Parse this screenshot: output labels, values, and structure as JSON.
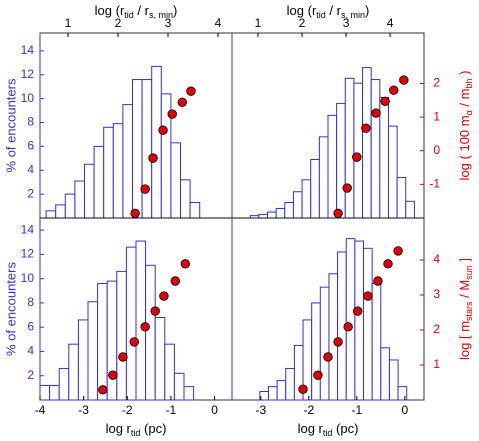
{
  "chart_data": [
    {
      "type": "histogram",
      "bins": [
        -3.86,
        -3.64,
        -3.42,
        -3.2,
        -2.98,
        -2.76,
        -2.54,
        -2.32,
        -2.1,
        -1.88,
        -1.66,
        -1.44,
        -1.22,
        -1.0,
        -0.78,
        -0.56,
        -0.34
      ],
      "values": [
        0.6,
        1.1,
        2.0,
        3.1,
        4.5,
        6.0,
        7.6,
        7.9,
        9.5,
        11.6,
        11.6,
        12.7,
        10.4,
        6.3,
        3.2,
        1.3
      ],
      "color": "#3333cc",
      "xlim": [
        -4,
        0.4
      ],
      "ylim": [
        0,
        15.5
      ],
      "yticks": [
        2,
        4,
        6,
        8,
        10,
        12,
        14
      ],
      "ylabel": "% of encounters",
      "top_xlabel": [
        "log (r",
        "tid",
        " / r",
        "s, min",
        ")"
      ],
      "top_xlim": [
        0.44,
        4.28
      ],
      "top_xticks": [
        1,
        2,
        3,
        4
      ],
      "scatter": {
        "x": [
          -1.82,
          -1.59,
          -1.41,
          -1.18,
          -0.97,
          -0.74,
          -0.54
        ],
        "y": [
          -1.86,
          -1.14,
          -0.22,
          0.61,
          1.09,
          1.44,
          1.77
        ],
        "color": "#dd0000",
        "axis": "y2"
      },
      "y2lim": [
        -2,
        3.5
      ]
    },
    {
      "type": "histogram",
      "bins": [
        -3.22,
        -3.04,
        -2.86,
        -2.68,
        -2.5,
        -2.32,
        -2.14,
        -1.96,
        -1.78,
        -1.6,
        -1.42,
        -1.24,
        -1.06,
        -0.88,
        -0.7,
        -0.52,
        -0.34,
        -0.16,
        0.02,
        0.2
      ],
      "values": [
        0.2,
        0.3,
        0.5,
        0.8,
        1.3,
        2.2,
        3.2,
        4.9,
        6.8,
        8.6,
        9.6,
        11.7,
        11.3,
        12.6,
        11.6,
        10.1,
        7.7,
        3.4,
        1.4
      ],
      "color": "#3333cc",
      "xlim": [
        -3.6,
        0.4
      ],
      "ylim": [
        0,
        15.5
      ],
      "top_xlabel": [
        "log (r",
        "tid",
        " / r",
        "s, min",
        ")"
      ],
      "top_xlim": [
        0.41,
        4.77
      ],
      "top_xticks": [
        1,
        2,
        3,
        4
      ],
      "scatter": {
        "x": [
          -1.39,
          -1.2,
          -1.0,
          -0.81,
          -0.6,
          -0.41,
          -0.23,
          -0.02
        ],
        "y": [
          -1.86,
          -1.11,
          -0.19,
          0.67,
          1.12,
          1.47,
          1.8,
          2.1
        ],
        "color": "#dd0000",
        "axis": "y2"
      },
      "y2lim": [
        -2,
        3.5
      ],
      "y2ticks": [
        -1,
        0,
        1,
        2
      ],
      "y2label": [
        "log ( 100 m",
        "α",
        " / m",
        "bh",
        " )"
      ]
    },
    {
      "type": "histogram",
      "bins": [
        -4.0,
        -3.78,
        -3.56,
        -3.34,
        -3.12,
        -2.9,
        -2.68,
        -2.46,
        -2.24,
        -2.02,
        -1.8,
        -1.58,
        -1.36,
        -1.14,
        -0.92,
        -0.7,
        -0.48
      ],
      "values": [
        1.2,
        1.2,
        2.6,
        4.6,
        6.6,
        8.1,
        9.6,
        9.8,
        10.6,
        12.6,
        13.1,
        11.1,
        6.8,
        4.6,
        2.2,
        1.1
      ],
      "color": "#3333cc",
      "xlim": [
        -4,
        0.4
      ],
      "xticks": [
        -4,
        -3,
        -2,
        -1,
        0
      ],
      "ylim": [
        0,
        15
      ],
      "yticks": [
        2,
        4,
        6,
        8,
        10,
        12,
        14
      ],
      "ylabel": "% of encounters",
      "xlabel": [
        "log r",
        "tid",
        " (pc)"
      ],
      "scatter": {
        "x": [
          -2.56,
          -2.33,
          -2.1,
          -1.84,
          -1.59,
          -1.36,
          -1.16,
          -0.9,
          -0.67
        ],
        "y": [
          0.29,
          0.71,
          1.23,
          1.66,
          2.09,
          2.54,
          2.97,
          3.4,
          3.89
        ],
        "color": "#dd0000",
        "axis": "y2"
      },
      "y2lim": [
        0,
        5.2
      ]
    },
    {
      "type": "histogram",
      "bins": [
        -3.02,
        -2.84,
        -2.66,
        -2.48,
        -2.3,
        -2.12,
        -1.94,
        -1.76,
        -1.58,
        -1.4,
        -1.22,
        -1.04,
        -0.86,
        -0.68,
        -0.5,
        -0.32,
        -0.14,
        0.04
      ],
      "values": [
        0.7,
        1.1,
        1.6,
        2.6,
        4.5,
        6.6,
        8.0,
        9.3,
        10.4,
        12.2,
        13.3,
        13.1,
        12.5,
        9.6,
        4.3,
        3.3,
        1.1
      ],
      "color": "#3333cc",
      "xlim": [
        -3.6,
        0.4
      ],
      "xticks": [
        -3,
        -2,
        -1,
        0
      ],
      "ylim": [
        0,
        15
      ],
      "xlabel": [
        "log r",
        "tid",
        " (pc)"
      ],
      "scatter": {
        "x": [
          -2.12,
          -1.81,
          -1.6,
          -1.39,
          -1.18,
          -0.98,
          -0.77,
          -0.56,
          -0.35,
          -0.14
        ],
        "y": [
          0.31,
          0.71,
          1.23,
          1.66,
          2.09,
          2.54,
          2.97,
          3.4,
          3.89,
          4.26
        ],
        "color": "#dd0000",
        "axis": "y2"
      },
      "y2lim": [
        0,
        5.2
      ],
      "y2ticks": [
        1,
        2,
        3,
        4
      ],
      "y2label": [
        "log [ m",
        "stars",
        " / M",
        "sun",
        " ]"
      ]
    }
  ]
}
